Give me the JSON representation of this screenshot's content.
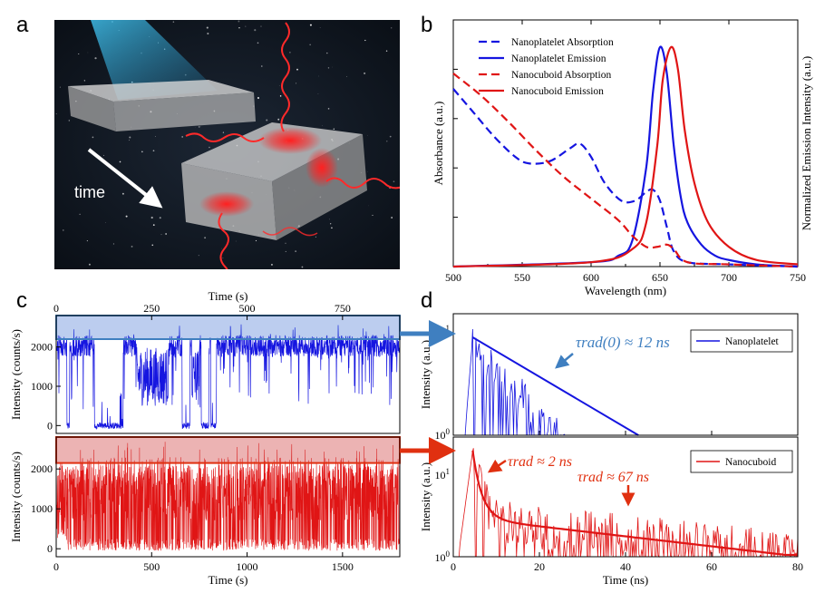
{
  "panels": {
    "a": {
      "letter": "a",
      "time_label": "time"
    },
    "b": {
      "letter": "b"
    },
    "c": {
      "letter": "c"
    },
    "d": {
      "letter": "d"
    }
  },
  "chart_data": [
    {
      "id": "b",
      "type": "line",
      "xlabel": "Wavelength (nm)",
      "ylabel_left": "Absorbance (a.u.)",
      "ylabel_right": "Normalized Emission Intensity (a.u.)",
      "xlim": [
        500,
        750
      ],
      "x_ticks": [
        "500",
        "550",
        "600",
        "650",
        "700",
        "750"
      ],
      "legend_position": "top-left",
      "series": [
        {
          "name": "Nanoplatelet Absorption",
          "color": "#1515e0",
          "dash": true,
          "x": [
            500,
            515,
            530,
            545,
            555,
            570,
            585,
            592,
            600,
            610,
            622,
            632,
            640,
            645,
            650,
            655,
            660,
            670,
            700,
            750
          ],
          "y": [
            0.81,
            0.7,
            0.59,
            0.5,
            0.47,
            0.48,
            0.54,
            0.56,
            0.5,
            0.38,
            0.3,
            0.3,
            0.34,
            0.35,
            0.3,
            0.18,
            0.07,
            0.02,
            0.01,
            0.0
          ]
        },
        {
          "name": "Nanoplatelet Emission",
          "color": "#1515e0",
          "dash": false,
          "x": [
            500,
            600,
            620,
            630,
            640,
            645,
            650,
            655,
            660,
            665,
            670,
            680,
            690,
            700,
            720,
            750
          ],
          "y": [
            0.0,
            0.02,
            0.05,
            0.12,
            0.45,
            0.8,
            1.0,
            0.88,
            0.55,
            0.32,
            0.2,
            0.1,
            0.05,
            0.03,
            0.01,
            0.0
          ]
        },
        {
          "name": "Nanocuboid Absorption",
          "color": "#e01515",
          "dash": true,
          "x": [
            500,
            520,
            540,
            560,
            580,
            600,
            620,
            630,
            640,
            648,
            655,
            660,
            670,
            700,
            750
          ],
          "y": [
            0.88,
            0.78,
            0.66,
            0.53,
            0.41,
            0.31,
            0.21,
            0.14,
            0.09,
            0.09,
            0.1,
            0.08,
            0.02,
            0.01,
            0.0
          ]
        },
        {
          "name": "Nanocuboid Emission",
          "color": "#e01515",
          "dash": false,
          "x": [
            500,
            600,
            630,
            640,
            648,
            652,
            658,
            663,
            668,
            675,
            685,
            700,
            720,
            750
          ],
          "y": [
            0.0,
            0.02,
            0.08,
            0.2,
            0.55,
            0.85,
            1.0,
            0.9,
            0.62,
            0.38,
            0.2,
            0.09,
            0.03,
            0.01
          ]
        }
      ]
    },
    {
      "id": "c-top",
      "type": "line",
      "ylabel": "Intensity (counts/s)",
      "xlabel_top": "Time (s)",
      "xlim": [
        0,
        900
      ],
      "ylim": [
        -200,
        2800
      ],
      "x_ticks": [
        "0",
        "250",
        "500",
        "750"
      ],
      "y_ticks": [
        "0",
        "1000",
        "2000"
      ],
      "highlight_band": [
        2200,
        2800
      ],
      "color": "#1515e0"
    },
    {
      "id": "c-bottom",
      "type": "line",
      "ylabel": "Intensity (counts/s)",
      "xlabel": "Time (s)",
      "xlim": [
        0,
        1800
      ],
      "ylim": [
        -200,
        2800
      ],
      "x_ticks": [
        "0",
        "500",
        "1000",
        "1500"
      ],
      "y_ticks": [
        "0",
        "1000",
        "2000"
      ],
      "highlight_band": [
        2150,
        2800
      ],
      "color": "#e01515"
    },
    {
      "id": "d-top",
      "type": "line",
      "ylabel": "Intensity (a.u.)",
      "xlim": [
        0,
        80
      ],
      "y_ticks": [
        "10^1",
        "10^0"
      ],
      "legend": "Nanoplatelet",
      "annotation": "τrad(0) ≈ 12 ns",
      "color": "#1515e0"
    },
    {
      "id": "d-bottom",
      "type": "line",
      "ylabel": "Intensity (a.u.)",
      "xlabel": "Time (ns)",
      "xlim": [
        0,
        80
      ],
      "x_ticks": [
        "0",
        "20",
        "40",
        "60",
        "80"
      ],
      "y_ticks": [
        "10^1",
        "10^0"
      ],
      "legend": "Nanocuboid",
      "annotations": [
        "τrad ≈ 2 ns",
        "τrad ≈ 67 ns"
      ],
      "color": "#e01515"
    }
  ]
}
